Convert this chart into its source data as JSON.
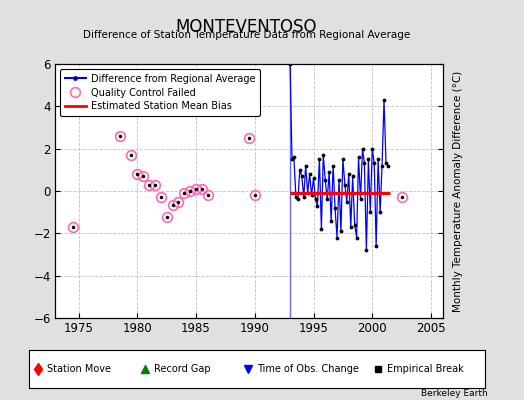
{
  "title": "MONTEVENTOSO",
  "subtitle": "Difference of Station Temperature Data from Regional Average",
  "ylabel_right": "Monthly Temperature Anomaly Difference (°C)",
  "xlim": [
    1973,
    2006
  ],
  "ylim": [
    -6,
    6
  ],
  "xticks": [
    1975,
    1980,
    1985,
    1990,
    1995,
    2000,
    2005
  ],
  "yticks": [
    -6,
    -4,
    -2,
    0,
    2,
    4,
    6
  ],
  "background_color": "#e0e0e0",
  "plot_bg_color": "#ffffff",
  "grid_color": "#c0c0c0",
  "bias_line_y": -0.1,
  "bias_line_xstart": 1993.0,
  "bias_line_xend": 2001.5,
  "obs_change_x": 1993.0,
  "qc_failed_points": [
    [
      1974.5,
      -1.7
    ],
    [
      1978.5,
      2.6
    ],
    [
      1979.5,
      1.7
    ],
    [
      1980.0,
      0.8
    ],
    [
      1980.5,
      0.7
    ],
    [
      1981.0,
      0.3
    ],
    [
      1981.5,
      0.3
    ],
    [
      1982.0,
      -0.3
    ],
    [
      1982.5,
      -1.25
    ],
    [
      1983.0,
      -0.65
    ],
    [
      1983.5,
      -0.5
    ],
    [
      1984.0,
      -0.1
    ],
    [
      1984.5,
      0.0
    ],
    [
      1985.0,
      0.1
    ],
    [
      1985.5,
      0.1
    ],
    [
      1986.0,
      -0.2
    ],
    [
      1989.5,
      2.5
    ],
    [
      1990.0,
      -0.2
    ],
    [
      2002.5,
      -0.3
    ]
  ],
  "main_series_x": [
    1993.0,
    1993.17,
    1993.33,
    1993.5,
    1993.67,
    1993.83,
    1994.0,
    1994.17,
    1994.33,
    1994.5,
    1994.67,
    1994.83,
    1995.0,
    1995.17,
    1995.33,
    1995.5,
    1995.67,
    1995.83,
    1996.0,
    1996.17,
    1996.33,
    1996.5,
    1996.67,
    1996.83,
    1997.0,
    1997.17,
    1997.33,
    1997.5,
    1997.67,
    1997.83,
    1998.0,
    1998.17,
    1998.33,
    1998.5,
    1998.67,
    1998.83,
    1999.0,
    1999.17,
    1999.33,
    1999.5,
    1999.67,
    1999.83,
    2000.0,
    2000.17,
    2000.33,
    2000.5,
    2000.67,
    2000.83,
    2001.0,
    2001.17,
    2001.33
  ],
  "main_series_y": [
    6.0,
    1.5,
    1.6,
    -0.3,
    -0.4,
    1.0,
    0.7,
    -0.3,
    1.2,
    -0.1,
    0.8,
    -0.2,
    0.6,
    -0.4,
    -0.7,
    1.5,
    -1.8,
    1.7,
    0.5,
    -0.4,
    0.9,
    -1.4,
    1.2,
    -0.8,
    -2.2,
    0.5,
    -1.9,
    1.5,
    0.3,
    -0.5,
    0.8,
    -1.7,
    0.7,
    -1.6,
    -2.2,
    1.6,
    -0.4,
    2.0,
    1.3,
    -2.8,
    1.5,
    -1.0,
    2.0,
    1.3,
    -2.6,
    1.5,
    -1.0,
    1.2,
    4.3,
    1.3,
    1.2
  ],
  "footer_text": "Berkeley Earth"
}
